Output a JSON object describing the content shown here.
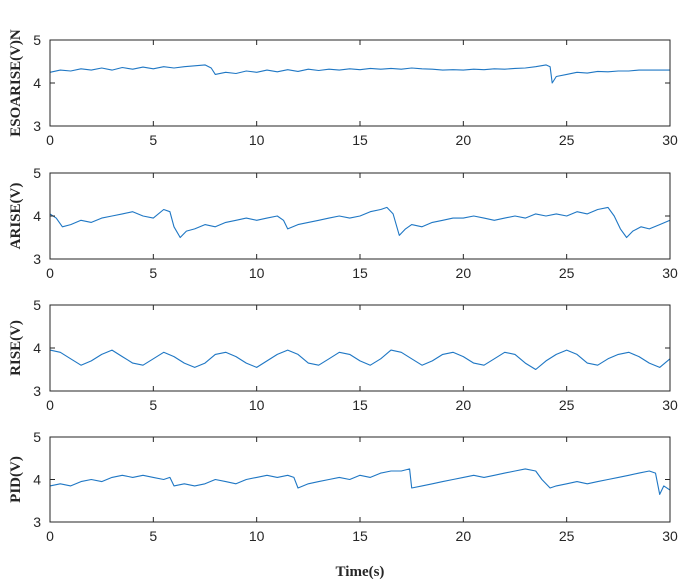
{
  "chart_data": [
    {
      "type": "line",
      "ylabel": "ESOARISE(V)",
      "ylabel_overflow": "N",
      "xlim": [
        0,
        30
      ],
      "ylim": [
        3,
        5
      ],
      "xticks": [
        "0",
        "5",
        "10",
        "15",
        "20",
        "25",
        "30"
      ],
      "yticks": [
        "3",
        "4",
        "5"
      ],
      "grid": false,
      "series": [
        {
          "color": "#1f77c4",
          "x": [
            0,
            0.5,
            1,
            1.5,
            2,
            2.5,
            3,
            3.5,
            4,
            4.5,
            5,
            5.5,
            6,
            6.5,
            7,
            7.5,
            7.8,
            8,
            8.5,
            9,
            9.5,
            10,
            10.5,
            11,
            11.5,
            12,
            12.5,
            13,
            13.5,
            14,
            14.5,
            15,
            15.5,
            16,
            16.5,
            17,
            17.5,
            18,
            18.5,
            19,
            19.5,
            20,
            20.5,
            21,
            21.5,
            22,
            22.5,
            23,
            23.5,
            24,
            24.2,
            24.3,
            24.5,
            25,
            25.5,
            26,
            26.5,
            27,
            27.5,
            28,
            28.5,
            29,
            29.5,
            30
          ],
          "y": [
            4.25,
            4.3,
            4.28,
            4.33,
            4.3,
            4.35,
            4.3,
            4.36,
            4.32,
            4.37,
            4.33,
            4.38,
            4.35,
            4.38,
            4.4,
            4.42,
            4.35,
            4.2,
            4.25,
            4.22,
            4.28,
            4.25,
            4.3,
            4.26,
            4.31,
            4.27,
            4.32,
            4.29,
            4.32,
            4.3,
            4.33,
            4.31,
            4.34,
            4.32,
            4.34,
            4.32,
            4.35,
            4.33,
            4.32,
            4.3,
            4.31,
            4.3,
            4.32,
            4.31,
            4.33,
            4.32,
            4.34,
            4.35,
            4.38,
            4.42,
            4.38,
            4.0,
            4.15,
            4.2,
            4.25,
            4.23,
            4.27,
            4.26,
            4.28,
            4.28,
            4.3,
            4.3,
            4.3,
            4.3
          ]
        }
      ]
    },
    {
      "type": "line",
      "ylabel": "ARISE(V)",
      "xlim": [
        0,
        30
      ],
      "ylim": [
        3,
        5
      ],
      "xticks": [
        "0",
        "5",
        "10",
        "15",
        "20",
        "25",
        "30"
      ],
      "yticks": [
        "3",
        "4",
        "5"
      ],
      "grid": false,
      "series": [
        {
          "color": "#1f77c4",
          "x": [
            0,
            0.3,
            0.6,
            1,
            1.5,
            2,
            2.5,
            3,
            3.5,
            4,
            4.5,
            5,
            5.5,
            5.8,
            6,
            6.3,
            6.6,
            7,
            7.5,
            8,
            8.5,
            9,
            9.5,
            10,
            10.5,
            11,
            11.3,
            11.5,
            12,
            12.5,
            13,
            13.5,
            14,
            14.5,
            15,
            15.5,
            16,
            16.3,
            16.6,
            16.9,
            17.2,
            17.5,
            18,
            18.5,
            19,
            19.5,
            20,
            20.5,
            21,
            21.5,
            22,
            22.5,
            23,
            23.5,
            24,
            24.5,
            25,
            25.5,
            26,
            26.5,
            27,
            27.3,
            27.6,
            27.9,
            28.2,
            28.6,
            29,
            29.5,
            30
          ],
          "y": [
            4.05,
            3.95,
            3.75,
            3.8,
            3.9,
            3.85,
            3.95,
            4.0,
            4.05,
            4.1,
            4.0,
            3.95,
            4.15,
            4.1,
            3.75,
            3.5,
            3.65,
            3.7,
            3.8,
            3.75,
            3.85,
            3.9,
            3.95,
            3.9,
            3.95,
            4.0,
            3.9,
            3.7,
            3.8,
            3.85,
            3.9,
            3.95,
            4.0,
            3.95,
            4.0,
            4.1,
            4.15,
            4.2,
            4.05,
            3.55,
            3.7,
            3.8,
            3.75,
            3.85,
            3.9,
            3.95,
            3.95,
            4.0,
            3.95,
            3.9,
            3.95,
            4.0,
            3.95,
            4.05,
            4.0,
            4.05,
            4.0,
            4.1,
            4.05,
            4.15,
            4.2,
            4.0,
            3.7,
            3.5,
            3.65,
            3.75,
            3.7,
            3.8,
            3.9
          ]
        }
      ]
    },
    {
      "type": "line",
      "ylabel": "RISE(V)",
      "xlim": [
        0,
        30
      ],
      "ylim": [
        3,
        5
      ],
      "xticks": [
        "0",
        "5",
        "10",
        "15",
        "20",
        "25",
        "30"
      ],
      "yticks": [
        "3",
        "4",
        "5"
      ],
      "grid": false,
      "series": [
        {
          "color": "#1f77c4",
          "x": [
            0,
            0.5,
            1,
            1.5,
            2,
            2.5,
            3,
            3.5,
            4,
            4.5,
            5,
            5.5,
            6,
            6.5,
            7,
            7.5,
            8,
            8.5,
            9,
            9.5,
            10,
            10.5,
            11,
            11.5,
            12,
            12.5,
            13,
            13.5,
            14,
            14.5,
            15,
            15.5,
            16,
            16.5,
            17,
            17.5,
            18,
            18.5,
            19,
            19.5,
            20,
            20.5,
            21,
            21.5,
            22,
            22.5,
            23,
            23.5,
            24,
            24.5,
            25,
            25.5,
            26,
            26.5,
            27,
            27.5,
            28,
            28.5,
            29,
            29.5,
            30
          ],
          "y": [
            3.95,
            3.9,
            3.75,
            3.6,
            3.7,
            3.85,
            3.95,
            3.8,
            3.65,
            3.6,
            3.75,
            3.9,
            3.8,
            3.65,
            3.55,
            3.65,
            3.85,
            3.9,
            3.8,
            3.65,
            3.55,
            3.7,
            3.85,
            3.95,
            3.85,
            3.65,
            3.6,
            3.75,
            3.9,
            3.85,
            3.7,
            3.6,
            3.75,
            3.95,
            3.9,
            3.75,
            3.6,
            3.7,
            3.85,
            3.9,
            3.8,
            3.65,
            3.6,
            3.75,
            3.9,
            3.85,
            3.65,
            3.5,
            3.7,
            3.85,
            3.95,
            3.85,
            3.65,
            3.6,
            3.75,
            3.85,
            3.9,
            3.8,
            3.65,
            3.55,
            3.75
          ]
        }
      ]
    },
    {
      "type": "line",
      "ylabel": "PID(V)",
      "xlabel": "Time(s)",
      "xlim": [
        0,
        30
      ],
      "ylim": [
        3,
        5
      ],
      "xticks": [
        "0",
        "5",
        "10",
        "15",
        "20",
        "25",
        "30"
      ],
      "yticks": [
        "3",
        "4",
        "5"
      ],
      "grid": false,
      "series": [
        {
          "color": "#1f77c4",
          "x": [
            0,
            0.5,
            1,
            1.5,
            2,
            2.5,
            3,
            3.5,
            4,
            4.5,
            5,
            5.5,
            5.8,
            6,
            6.5,
            7,
            7.5,
            8,
            8.5,
            9,
            9.5,
            10,
            10.5,
            11,
            11.5,
            11.8,
            12,
            12.5,
            13,
            13.5,
            14,
            14.5,
            15,
            15.5,
            16,
            16.5,
            17,
            17.4,
            17.5,
            18,
            18.5,
            19,
            19.5,
            20,
            20.5,
            21,
            21.5,
            22,
            22.5,
            23,
            23.5,
            23.8,
            24.2,
            24.5,
            25,
            25.5,
            26,
            26.5,
            27,
            27.5,
            28,
            28.5,
            29,
            29.3,
            29.5,
            29.7,
            30
          ],
          "y": [
            3.85,
            3.9,
            3.85,
            3.95,
            4.0,
            3.95,
            4.05,
            4.1,
            4.05,
            4.1,
            4.05,
            4.0,
            4.05,
            3.85,
            3.9,
            3.85,
            3.9,
            4.0,
            3.95,
            3.9,
            4.0,
            4.05,
            4.1,
            4.05,
            4.1,
            4.05,
            3.8,
            3.9,
            3.95,
            4.0,
            4.05,
            4.0,
            4.1,
            4.05,
            4.15,
            4.2,
            4.2,
            4.25,
            3.8,
            3.85,
            3.9,
            3.95,
            4.0,
            4.05,
            4.1,
            4.05,
            4.1,
            4.15,
            4.2,
            4.25,
            4.2,
            4.0,
            3.8,
            3.85,
            3.9,
            3.95,
            3.9,
            3.95,
            4.0,
            4.05,
            4.1,
            4.15,
            4.2,
            4.15,
            3.65,
            3.85,
            3.75
          ]
        }
      ]
    }
  ]
}
